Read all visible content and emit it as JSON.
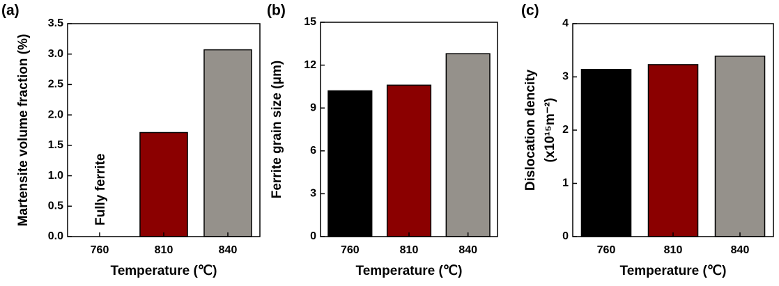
{
  "chart_data": [
    {
      "type": "bar",
      "panel_label": "(a)",
      "x_label": "Temperature (℃)",
      "y_label": [
        "Martensite volume fraction (%)"
      ],
      "categories": [
        "760",
        "810",
        "840"
      ],
      "values": [
        null,
        1.71,
        3.07
      ],
      "colors": [
        "#000000",
        "#8b0000",
        "#95918b"
      ],
      "annotation": "Fully ferrite",
      "ylim": [
        0,
        3.5
      ],
      "yticks": [
        {
          "value": 0,
          "label": "0.0"
        },
        0.5,
        {
          "value": 1,
          "label": "1.0"
        },
        1.5,
        {
          "value": 2,
          "label": "2.0"
        },
        2.5,
        {
          "value": 3,
          "label": "3.0"
        },
        3.5
      ]
    },
    {
      "type": "bar",
      "panel_label": "(b)",
      "x_label": "Temperature (℃)",
      "y_label": [
        "Ferrite grain size (μm)"
      ],
      "categories": [
        "760",
        "810",
        "840"
      ],
      "values": [
        10.2,
        10.6,
        12.8
      ],
      "colors": [
        "#000000",
        "#8b0000",
        "#95918b"
      ],
      "ylim": [
        0,
        15
      ],
      "yticks": [
        0,
        3,
        6,
        9,
        12,
        15
      ]
    },
    {
      "type": "bar",
      "panel_label": "(c)",
      "x_label": "Temperature (℃)",
      "y_label": [
        "Dislocation dencity",
        "(x10¹⁵m⁻²)"
      ],
      "categories": [
        "760",
        "810",
        "840"
      ],
      "values": [
        3.14,
        3.23,
        3.39
      ],
      "colors": [
        "#000000",
        "#8b0000",
        "#95918b"
      ],
      "ylim": [
        0,
        4
      ],
      "yticks": [
        0,
        1,
        2,
        3,
        4
      ]
    }
  ]
}
